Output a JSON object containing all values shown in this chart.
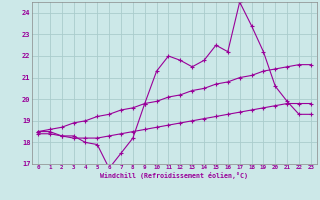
{
  "xlabel": "Windchill (Refroidissement éolien,°C)",
  "bg_color": "#cce8e8",
  "grid_color": "#aacccc",
  "line_color": "#990099",
  "xlim": [
    -0.5,
    23.5
  ],
  "ylim": [
    17,
    24.5
  ],
  "yticks": [
    17,
    18,
    19,
    20,
    21,
    22,
    23,
    24
  ],
  "xticks": [
    0,
    1,
    2,
    3,
    4,
    5,
    6,
    7,
    8,
    9,
    10,
    11,
    12,
    13,
    14,
    15,
    16,
    17,
    18,
    19,
    20,
    21,
    22,
    23
  ],
  "line1_x": [
    0,
    1,
    2,
    3,
    4,
    5,
    6,
    7,
    8,
    9,
    10,
    11,
    12,
    13,
    14,
    15,
    16,
    17,
    18,
    19,
    20,
    21,
    22,
    23
  ],
  "line1_y": [
    18.5,
    18.5,
    18.3,
    18.3,
    18.0,
    17.9,
    16.8,
    17.5,
    18.2,
    19.8,
    21.3,
    22.0,
    21.8,
    21.5,
    21.8,
    22.5,
    22.2,
    24.5,
    23.4,
    22.2,
    20.6,
    19.9,
    19.3,
    19.3
  ],
  "line2_x": [
    0,
    1,
    2,
    3,
    4,
    5,
    6,
    7,
    8,
    9,
    10,
    11,
    12,
    13,
    14,
    15,
    16,
    17,
    18,
    19,
    20,
    21,
    22,
    23
  ],
  "line2_y": [
    18.5,
    18.6,
    18.7,
    18.9,
    19.0,
    19.2,
    19.3,
    19.5,
    19.6,
    19.8,
    19.9,
    20.1,
    20.2,
    20.4,
    20.5,
    20.7,
    20.8,
    21.0,
    21.1,
    21.3,
    21.4,
    21.5,
    21.6,
    21.6
  ],
  "line3_x": [
    0,
    1,
    2,
    3,
    4,
    5,
    6,
    7,
    8,
    9,
    10,
    11,
    12,
    13,
    14,
    15,
    16,
    17,
    18,
    19,
    20,
    21,
    22,
    23
  ],
  "line3_y": [
    18.4,
    18.4,
    18.3,
    18.2,
    18.2,
    18.2,
    18.3,
    18.4,
    18.5,
    18.6,
    18.7,
    18.8,
    18.9,
    19.0,
    19.1,
    19.2,
    19.3,
    19.4,
    19.5,
    19.6,
    19.7,
    19.8,
    19.8,
    19.8
  ]
}
